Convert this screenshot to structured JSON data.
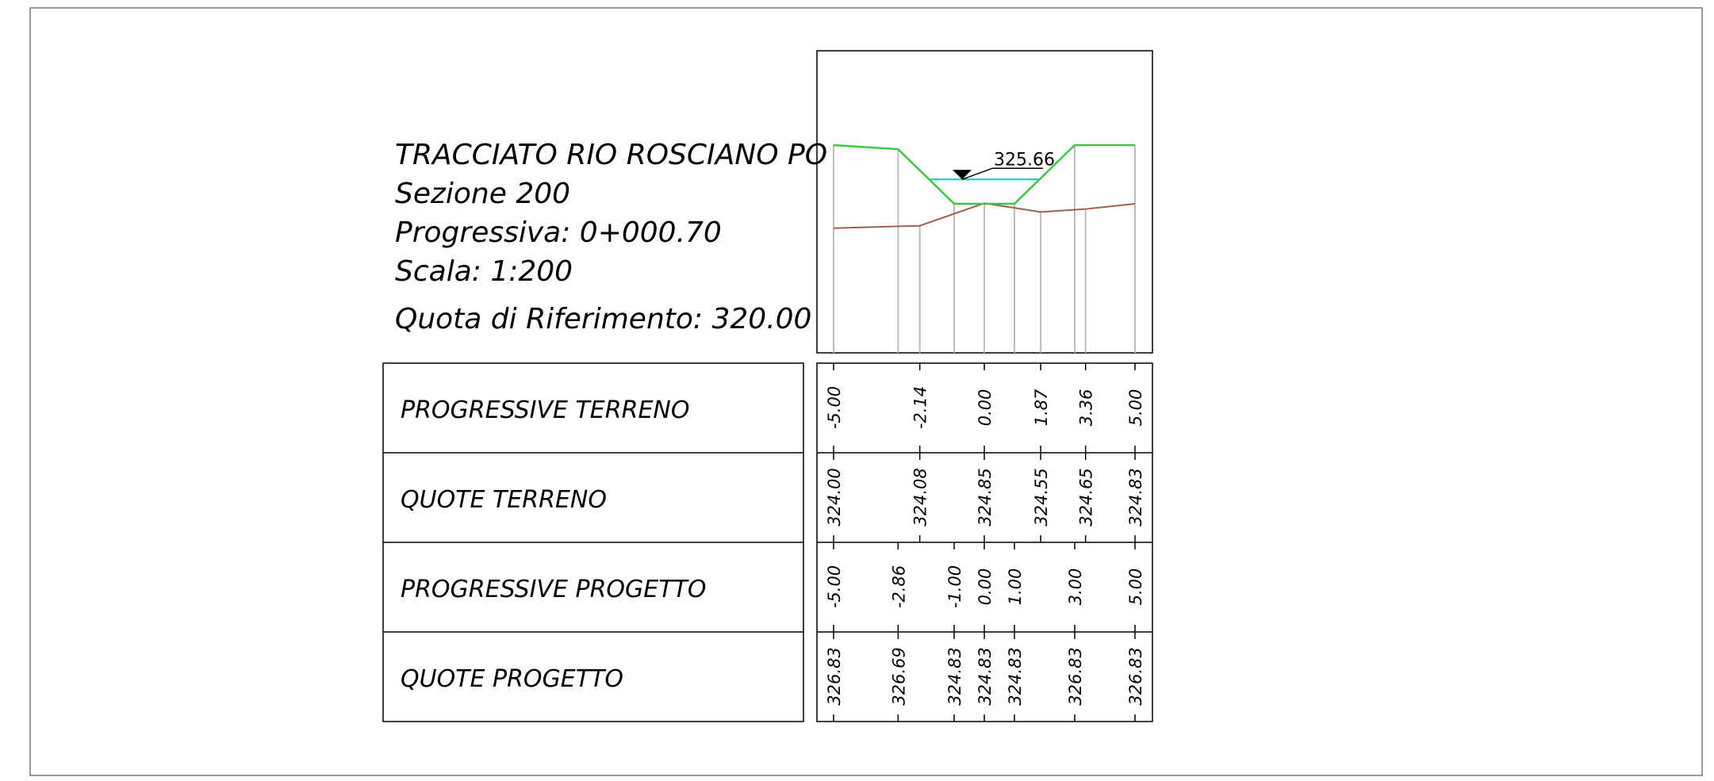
{
  "info": {
    "title": "TRACCIATO RIO ROSCIANO PO",
    "section": "Sezione 200",
    "progressive": "Progressiva: 0+000.70",
    "scale": "Scala: 1:200",
    "reference": "Quota di Riferimento: 320.00"
  },
  "water_level_label": "325.66",
  "colors": {
    "project": "#3cc83c",
    "terrain": "#a0604a",
    "water": "#00c8e6",
    "stations": "#bdbdbd",
    "frame": "#000000"
  },
  "rows": [
    {
      "label": "PROGRESSIVE TERRENO"
    },
    {
      "label": "QUOTE TERRENO"
    },
    {
      "label": "PROGRESSIVE PROGETTO"
    },
    {
      "label": "QUOTE PROGETTO"
    }
  ],
  "chart_data": {
    "type": "line",
    "reference_elevation": 320.0,
    "water_level": 325.66,
    "series": [
      {
        "name": "QUOTE TERRENO",
        "x": [
          -5.0,
          -2.14,
          0.0,
          1.87,
          3.36,
          5.0
        ],
        "y": [
          324.0,
          324.08,
          324.85,
          324.55,
          324.65,
          324.83
        ],
        "x_labels": [
          "-5.00",
          "-2.14",
          "0.00",
          "1.87",
          "3.36",
          "5.00"
        ],
        "y_labels": [
          "324.00",
          "324.08",
          "324.85",
          "324.55",
          "324.65",
          "324.83"
        ]
      },
      {
        "name": "QUOTE PROGETTO",
        "x": [
          -5.0,
          -2.86,
          -1.0,
          0.0,
          1.0,
          3.0,
          5.0
        ],
        "y": [
          326.83,
          326.69,
          324.83,
          324.83,
          324.83,
          326.83,
          326.83
        ],
        "x_labels": [
          "-5.00",
          "-2.86",
          "-1.00",
          "0.00",
          "1.00",
          "3.00",
          "5.00"
        ],
        "y_labels": [
          "326.83",
          "326.69",
          "324.83",
          "324.83",
          "324.83",
          "326.83",
          "326.83"
        ]
      }
    ]
  }
}
